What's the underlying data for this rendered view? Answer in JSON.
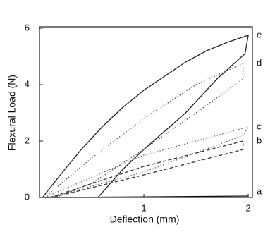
{
  "chart_data": {
    "type": "line",
    "x_label": "Deflection (mm)",
    "y_label": "Flexural Load (N)",
    "xlim": [
      0,
      2.04
    ],
    "ylim": [
      0,
      6.05
    ],
    "xticks": [
      1,
      2
    ],
    "yticks": [
      0,
      2,
      4,
      6
    ],
    "grid": false,
    "series": [
      {
        "name": "e",
        "color": "#222222",
        "dash": "solid",
        "x": [
          0.03,
          0.2,
          0.4,
          0.6,
          0.8,
          1.0,
          1.2,
          1.4,
          1.6,
          1.8,
          2.0,
          1.97,
          1.7,
          1.4,
          1.0,
          0.8,
          0.56
        ],
        "values": [
          0,
          0.8,
          1.7,
          2.5,
          3.2,
          3.8,
          4.3,
          4.8,
          5.2,
          5.5,
          5.75,
          5.1,
          4.2,
          3.0,
          1.7,
          1.0,
          0
        ]
      },
      {
        "name": "d",
        "color": "#555555",
        "dash": "dotted",
        "x": [
          0.05,
          0.5,
          1.0,
          1.5,
          1.95,
          1.95,
          1.5,
          1.0,
          0.5,
          0.15
        ],
        "values": [
          0,
          1.4,
          2.8,
          4.0,
          4.75,
          4.2,
          3.0,
          1.7,
          0.5,
          0
        ]
      },
      {
        "name": "c",
        "color": "#666666",
        "dash": "dotted",
        "x": [
          0.05,
          1.0,
          2.0,
          1.95,
          1.0,
          0.1
        ],
        "values": [
          0,
          1.5,
          2.5,
          2.2,
          0.9,
          0
        ]
      },
      {
        "name": "b",
        "color": "#333333",
        "dash": "dashed",
        "x": [
          0.1,
          1.0,
          1.95,
          1.95,
          1.0,
          0.12
        ],
        "values": [
          0,
          1.1,
          2.0,
          1.7,
          0.8,
          0
        ]
      },
      {
        "name": "a",
        "color": "#111111",
        "dash": "solid",
        "x": [
          0.05,
          1.0,
          2.0
        ],
        "values": [
          0,
          0.02,
          0.05
        ]
      }
    ]
  }
}
